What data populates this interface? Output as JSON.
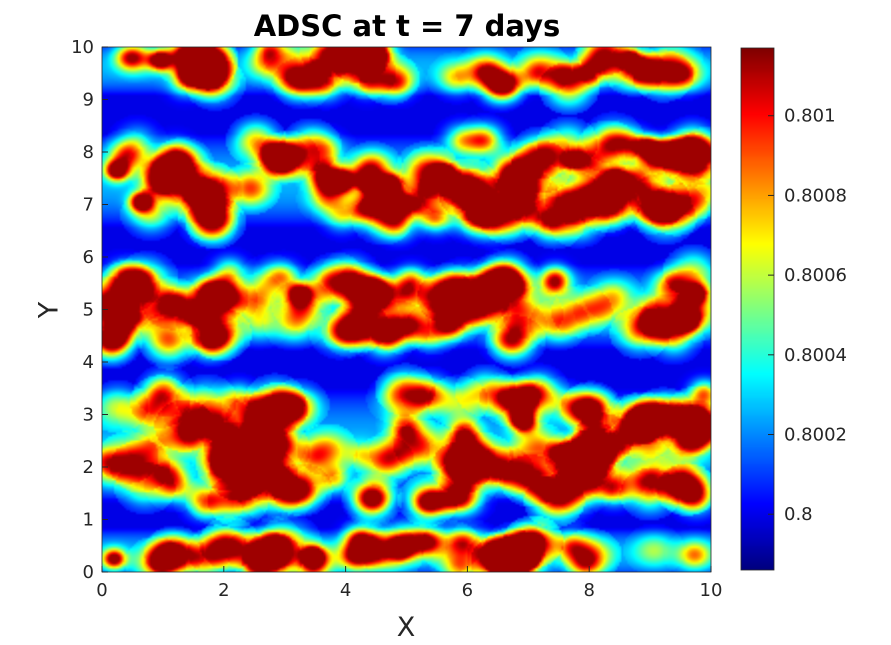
{
  "chart_data": {
    "type": "heatmap",
    "title": "ADSC at t = 7 days",
    "xlabel": "X",
    "ylabel": "Y",
    "xlim": [
      0,
      10
    ],
    "ylim": [
      0,
      10
    ],
    "x_ticks": [
      "0",
      "2",
      "4",
      "6",
      "8",
      "10"
    ],
    "y_ticks": [
      "0",
      "1",
      "2",
      "3",
      "4",
      "5",
      "6",
      "7",
      "8",
      "9",
      "10"
    ],
    "colormap": "jet",
    "colorbar": {
      "min": 0.79986,
      "max": 0.80117,
      "ticks": [
        0.8,
        0.8002,
        0.8004,
        0.8006,
        0.8008,
        0.801
      ],
      "tick_labels": [
        "0.8",
        "0.8002",
        "0.8004",
        "0.8006",
        "0.8008",
        "0.801"
      ]
    },
    "bands": [
      {
        "y_range": [
          0,
          0.7
        ],
        "level": "high"
      },
      {
        "y_range": [
          0.7,
          1.3
        ],
        "level": "low"
      },
      {
        "y_range": [
          1.3,
          3.5
        ],
        "level": "high"
      },
      {
        "y_range": [
          3.5,
          4.3
        ],
        "level": "low"
      },
      {
        "y_range": [
          4.3,
          5.8
        ],
        "level": "high"
      },
      {
        "y_range": [
          5.8,
          6.6
        ],
        "level": "low"
      },
      {
        "y_range": [
          6.6,
          8.3
        ],
        "level": "high"
      },
      {
        "y_range": [
          8.3,
          9.2
        ],
        "level": "low"
      },
      {
        "y_range": [
          9.2,
          10
        ],
        "level": "high"
      }
    ],
    "hotspots": [
      {
        "x": 0.95,
        "y": 9.75,
        "value": 0.80105
      },
      {
        "x": 1.45,
        "y": 9.5,
        "value": 0.80102
      },
      {
        "x": 8.7,
        "y": 9.75,
        "value": 0.80098
      },
      {
        "x": 0.25,
        "y": 7.65,
        "value": 0.80112
      },
      {
        "x": 0.65,
        "y": 7.05,
        "value": 0.80108
      },
      {
        "x": 3.95,
        "y": 7.45,
        "value": 0.8011
      },
      {
        "x": 4.4,
        "y": 7.4,
        "value": 0.80105
      },
      {
        "x": 4.75,
        "y": 7.4,
        "value": 0.80107
      },
      {
        "x": 5.6,
        "y": 7.6,
        "value": 0.80095
      },
      {
        "x": 8.45,
        "y": 7.5,
        "value": 0.80098
      },
      {
        "x": 8.95,
        "y": 8.1,
        "value": 0.80095
      },
      {
        "x": 7.75,
        "y": 7.85,
        "value": 0.80092
      },
      {
        "x": 1.6,
        "y": 4.9,
        "value": 0.80112
      },
      {
        "x": 0.35,
        "y": 4.9,
        "value": 0.8011
      },
      {
        "x": 3.25,
        "y": 5.3,
        "value": 0.80102
      },
      {
        "x": 9.6,
        "y": 4.8,
        "value": 0.80112
      },
      {
        "x": 9.75,
        "y": 5.3,
        "value": 0.80105
      },
      {
        "x": 6.9,
        "y": 2.9,
        "value": 0.80092
      },
      {
        "x": 7.55,
        "y": 2.25,
        "value": 0.80095
      },
      {
        "x": 2.55,
        "y": 2.75,
        "value": 0.80092
      },
      {
        "x": 3.45,
        "y": 0.3,
        "value": 0.80112
      },
      {
        "x": 4.9,
        "y": 0.45,
        "value": 0.80102
      },
      {
        "x": 6.5,
        "y": 0.25,
        "value": 0.80102
      },
      {
        "x": 0.2,
        "y": 0.25,
        "value": 0.80095
      }
    ]
  }
}
